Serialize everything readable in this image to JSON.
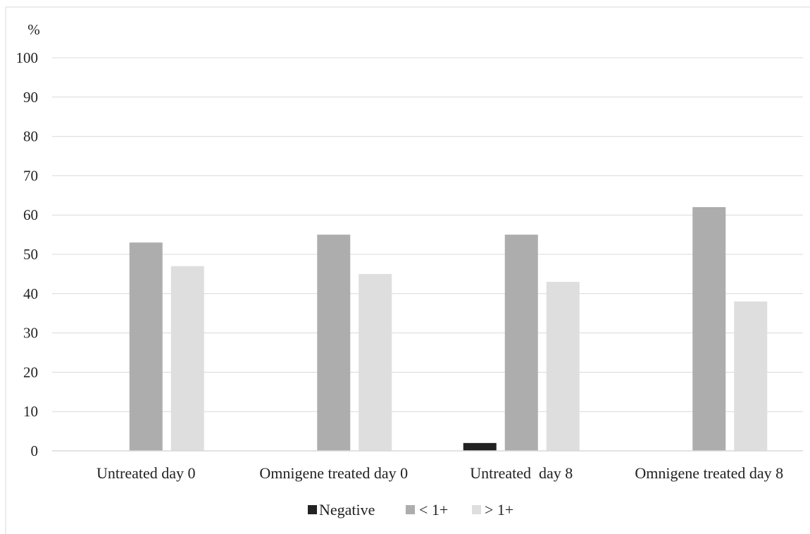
{
  "chart_data": {
    "type": "bar",
    "unit_label": "%",
    "categories": [
      "Untreated day 0",
      "Omnigene treated day 0",
      "Untreated  day 8",
      "Omnigene treated day 8"
    ],
    "series": [
      {
        "name": "Negative",
        "color": "#222222",
        "values": [
          0,
          0,
          2,
          0
        ]
      },
      {
        "name": "< 1+",
        "color": "#adadad",
        "values": [
          53,
          55,
          55,
          62
        ]
      },
      {
        "name": "> 1+",
        "color": "#dedede",
        "values": [
          47,
          45,
          43,
          38
        ]
      }
    ],
    "ylim": [
      0,
      100
    ],
    "yticks": [
      0,
      10,
      20,
      30,
      40,
      50,
      60,
      70,
      80,
      90,
      100
    ],
    "grid": true,
    "legend_position": "bottom-center"
  }
}
